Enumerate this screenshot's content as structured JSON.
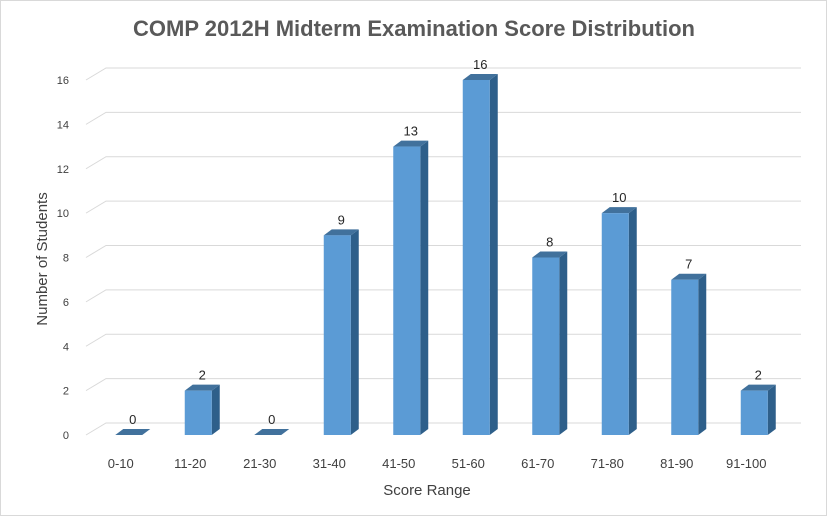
{
  "chart_data": {
    "type": "bar",
    "title": "COMP 2012H Midterm Examination Score Distribution",
    "xlabel": "Score Range",
    "ylabel": "Number of Students",
    "categories": [
      "0-10",
      "11-20",
      "21-30",
      "31-40",
      "41-50",
      "51-60",
      "61-70",
      "71-80",
      "81-90",
      "91-100"
    ],
    "values": [
      0,
      2,
      0,
      9,
      13,
      16,
      8,
      10,
      7,
      2
    ],
    "ylim": [
      0,
      16
    ],
    "yticks": [
      0,
      2,
      4,
      6,
      8,
      10,
      12,
      14,
      16
    ],
    "grid": true,
    "data_labels": true,
    "style": "3d-column",
    "colors": {
      "bar_front": "#5b9bd5",
      "bar_side": "#2e5f8a",
      "bar_top": "#41719c"
    }
  }
}
